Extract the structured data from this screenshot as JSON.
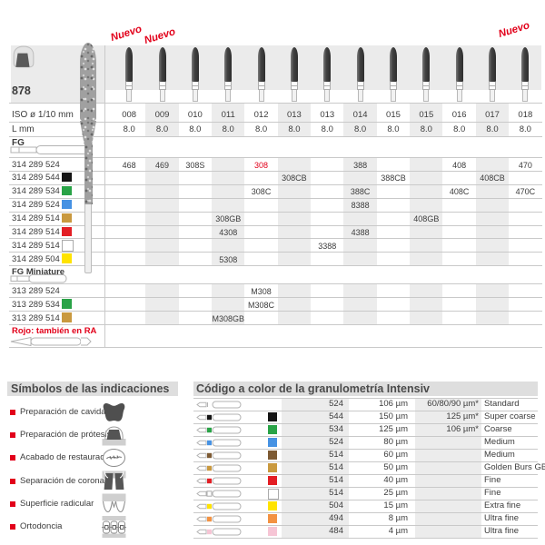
{
  "page": {
    "family_code": "878",
    "nuevo_label": "Nuevo",
    "nuevo_columns": [
      0,
      1,
      12
    ],
    "red_note": "Rojo: también en RA",
    "accent_red": "#e2001a"
  },
  "main_table": {
    "row_headers": {
      "iso": "ISO ø 1/10 mm",
      "l": "L mm",
      "fg": "FG",
      "fg_miniature": "FG Miniature"
    },
    "columns": [
      "008",
      "009",
      "010",
      "011",
      "012",
      "013",
      "013",
      "014",
      "015",
      "015",
      "016",
      "017",
      "018"
    ],
    "lengths": [
      "8.0",
      "8.0",
      "8.0",
      "8.0",
      "8.0",
      "8.0",
      "8.0",
      "8.0",
      "8.0",
      "8.0",
      "8.0",
      "8.0",
      "8.0"
    ],
    "shaded_columns": [
      1,
      3,
      5,
      7,
      9,
      11
    ],
    "fg_rows": [
      {
        "code": "314 289 524",
        "color": null,
        "cells": [
          {
            "col": 0,
            "value": "468"
          },
          {
            "col": 1,
            "value": "469"
          },
          {
            "col": 2,
            "value": "308S"
          },
          {
            "col": 4,
            "value": "308",
            "red": true
          },
          {
            "col": 7,
            "value": "388"
          },
          {
            "col": 10,
            "value": "408"
          },
          {
            "col": 12,
            "value": "470"
          }
        ]
      },
      {
        "code": "314 289 544",
        "color": "black",
        "cells": [
          {
            "col": 5,
            "value": "308CB"
          },
          {
            "col": 8,
            "value": "388CB"
          },
          {
            "col": 11,
            "value": "408CB"
          }
        ]
      },
      {
        "code": "314 289 534",
        "color": "green",
        "cells": [
          {
            "col": 4,
            "value": "308C"
          },
          {
            "col": 7,
            "value": "388C"
          },
          {
            "col": 10,
            "value": "408C"
          },
          {
            "col": 12,
            "value": "470C"
          }
        ]
      },
      {
        "code": "314 289 524",
        "color": "blue",
        "cells": [
          {
            "col": 7,
            "value": "8388"
          }
        ]
      },
      {
        "code": "314 289 514",
        "color": "gold",
        "cells": [
          {
            "col": 3,
            "value": "308GB"
          },
          {
            "col": 9,
            "value": "408GB"
          }
        ]
      },
      {
        "code": "314 289 514",
        "color": "red",
        "cells": [
          {
            "col": 3,
            "value": "4308"
          },
          {
            "col": 7,
            "value": "4388"
          }
        ]
      },
      {
        "code": "314 289 514",
        "color": "white",
        "cells": [
          {
            "col": 6,
            "value": "3388"
          }
        ]
      },
      {
        "code": "314 289 504",
        "color": "yellow",
        "cells": [
          {
            "col": 3,
            "value": "5308"
          }
        ]
      }
    ],
    "fg_miniature_rows": [
      {
        "code": "313 289 524",
        "color": null,
        "cells": [
          {
            "col": 4,
            "value": "M308"
          }
        ]
      },
      {
        "code": "313 289 534",
        "color": "green",
        "cells": [
          {
            "col": 4,
            "value": "M308C"
          }
        ]
      },
      {
        "code": "313 289 514",
        "color": "gold",
        "cells": [
          {
            "col": 3,
            "value": "M308GB"
          }
        ]
      }
    ]
  },
  "color_swatches": {
    "black": "#141414",
    "green": "#29a347",
    "blue": "#4692e3",
    "gold": "#c9993f",
    "brown": "#7d5a33",
    "red": "#e31e24",
    "white": "#ffffff",
    "yellow": "#ffe300",
    "orange": "#f39242",
    "pink": "#f6c5d5"
  },
  "indications_panel": {
    "title": "Símbolos de las indicaciones",
    "items": [
      {
        "label": "Preparación de cavidades",
        "icon": "cavity-prep-icon"
      },
      {
        "label": "Preparación de prótesis",
        "icon": "prosthesis-prep-icon"
      },
      {
        "label": "Acabado de restauraciones",
        "icon": "restoration-finishing-icon"
      },
      {
        "label": "Separación de coronas",
        "icon": "crown-separation-icon"
      },
      {
        "label": "Superficie radicular",
        "icon": "root-surface-icon"
      },
      {
        "label": "Ortodoncia",
        "icon": "orthodontics-icon"
      }
    ]
  },
  "grit_panel": {
    "title": "Código a color de la granulometría Intensiv",
    "rows": [
      {
        "color": null,
        "code": "524",
        "grit": "106 µm",
        "alt": "60/80/90 µm*",
        "name": "Standard"
      },
      {
        "color": "black",
        "code": "544",
        "grit": "150 µm",
        "alt": "125 µm*",
        "name": "Super coarse"
      },
      {
        "color": "green",
        "code": "534",
        "grit": "125 µm",
        "alt": "106 µm*",
        "name": "Coarse"
      },
      {
        "color": "blue",
        "code": "524",
        "grit": "80 µm",
        "alt": "",
        "name": "Medium"
      },
      {
        "color": "brown",
        "code": "514",
        "grit": "60 µm",
        "alt": "",
        "name": "Medium"
      },
      {
        "color": "gold",
        "code": "514",
        "grit": "50 µm",
        "alt": "",
        "name": "Golden Burs GB"
      },
      {
        "color": "red",
        "code": "514",
        "grit": "40 µm",
        "alt": "",
        "name": "Fine"
      },
      {
        "color": "white",
        "code": "514",
        "grit": "25 µm",
        "alt": "",
        "name": "Fine"
      },
      {
        "color": "yellow",
        "code": "504",
        "grit": "15 µm",
        "alt": "",
        "name": "Extra fine"
      },
      {
        "color": "orange",
        "code": "494",
        "grit": "8 µm",
        "alt": "",
        "name": "Ultra fine"
      },
      {
        "color": "pink",
        "code": "484",
        "grit": "4 µm",
        "alt": "",
        "name": "Ultra fine"
      }
    ]
  }
}
